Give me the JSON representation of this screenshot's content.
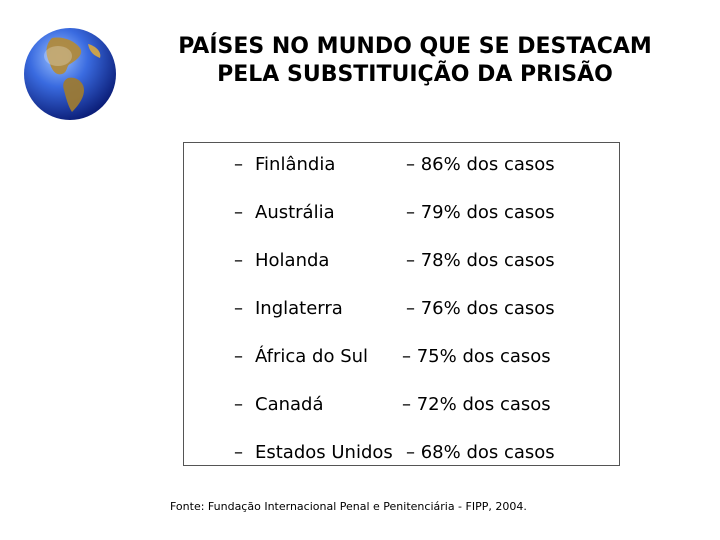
{
  "title": {
    "line1": "PAÍSES NO MUNDO QUE SE DESTACAM",
    "line2": "PELA SUBSTITUIÇÃO DA PRISÃO"
  },
  "rows": [
    {
      "dash": "–",
      "country": "Finlândia",
      "value": "– 86%  dos casos"
    },
    {
      "dash": "–",
      "country": "Austrália",
      "value": "– 79%  dos casos"
    },
    {
      "dash": "–",
      "country": "Holanda",
      "value": "– 78%  dos casos"
    },
    {
      "dash": "–",
      "country": "Inglaterra",
      "value": "– 76%  dos casos"
    },
    {
      "dash": "–",
      "country": "África do Sul",
      "value": "– 75%  dos casos"
    },
    {
      "dash": "–",
      "country": "Canadá",
      "value": "– 72%  dos casos"
    },
    {
      "dash": "–",
      "country": "Estados Unidos",
      "value": "– 68%  dos casos"
    }
  ],
  "source": "Fonte: Fundação Internacional Penal e Penitenciária - FIPP, 2004.",
  "colors": {
    "globe_ocean": "#2f5fd0",
    "globe_land": "#b08a3c"
  },
  "icons": {
    "globe": "globe-icon"
  }
}
